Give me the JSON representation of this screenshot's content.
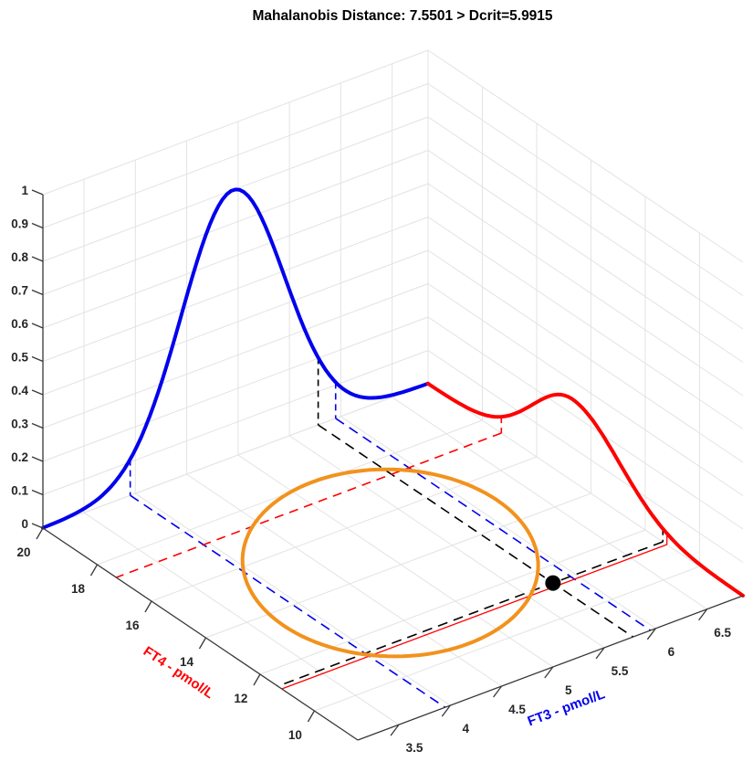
{
  "window": {
    "title": "Mahalanobis Distance: 7.5501 > Dcrit=5.9915"
  },
  "chart_data": {
    "type": "line",
    "subtype": "3d-bivariate-reference-region",
    "title": "Mahalanobis Distance: 7.5501 > Dcrit=5.9915",
    "mahalanobis_distance": 7.5501,
    "dcrit": 5.9915,
    "outlier": true,
    "background": "#ffffff",
    "grid": true,
    "colors": {
      "grid": "#e3e3e3",
      "axis": "#383838",
      "tick_label": "#262626",
      "ft3": "#0000ee",
      "ft4": "#ff0000",
      "ellipse": "#f2921d",
      "patient": "#000000"
    },
    "axes": {
      "x": {
        "label": "FT3 - pmol/L",
        "lim": [
          3.1,
          6.85
        ],
        "ticks": [
          3.5,
          4,
          4.5,
          5,
          5.5,
          6,
          6.5
        ],
        "tick_labels": [
          "3.5",
          "4",
          "4.5",
          "5",
          "5.5",
          "6",
          "6.5"
        ]
      },
      "y": {
        "label": "FT4 - pmol/L",
        "lim": [
          8.4,
          20
        ],
        "ticks": [
          10,
          12,
          14,
          16,
          18,
          20
        ],
        "tick_labels": [
          "10",
          "12",
          "14",
          "16",
          "18",
          "20"
        ]
      },
      "z": {
        "label": "",
        "lim": [
          0,
          1
        ],
        "ticks": [
          0,
          0.1,
          0.2,
          0.3,
          0.4,
          0.5,
          0.6,
          0.7,
          0.8,
          0.9,
          1
        ],
        "tick_labels": [
          "0",
          "0.1",
          "0.2",
          "0.3",
          "0.4",
          "0.5",
          "0.6",
          "0.7",
          "0.8",
          "0.9",
          "1"
        ]
      }
    },
    "series": [
      {
        "name": "FT3 marginal density",
        "wall": "y-max",
        "color": "#0000ee",
        "shape": "gaussian",
        "mu": 4.95,
        "sigma": 0.5,
        "peak": 0.8
      },
      {
        "name": "FT4 marginal density",
        "wall": "x-max",
        "color": "#ff0000",
        "shape": "gaussian-skew",
        "mu": 14.7,
        "sigma_left": 1.75,
        "sigma_right": 1.45,
        "peak": 0.245
      }
    ],
    "reference_intervals": {
      "ft3": {
        "lower": 3.95,
        "upper": 5.95,
        "color": "#0000ee",
        "lower_style": "dashed",
        "upper_style": "dashed"
      },
      "ft4": {
        "lower": 11.2,
        "upper": 17.3,
        "color": "#ff0000",
        "lower_style": "solid",
        "upper_style": "dashed"
      }
    },
    "tolerance_ellipse": {
      "center_ft3": 4.95,
      "center_ft4": 14.2,
      "extent_ft3": 1.25,
      "extent_ft4": 3.87,
      "rho": 0.21,
      "color": "#f2921d"
    },
    "patient_point": {
      "ft3": 5.78,
      "ft4": 11.35,
      "color": "#000000",
      "projection_style": "dashed",
      "projection_color": "#000000"
    }
  }
}
